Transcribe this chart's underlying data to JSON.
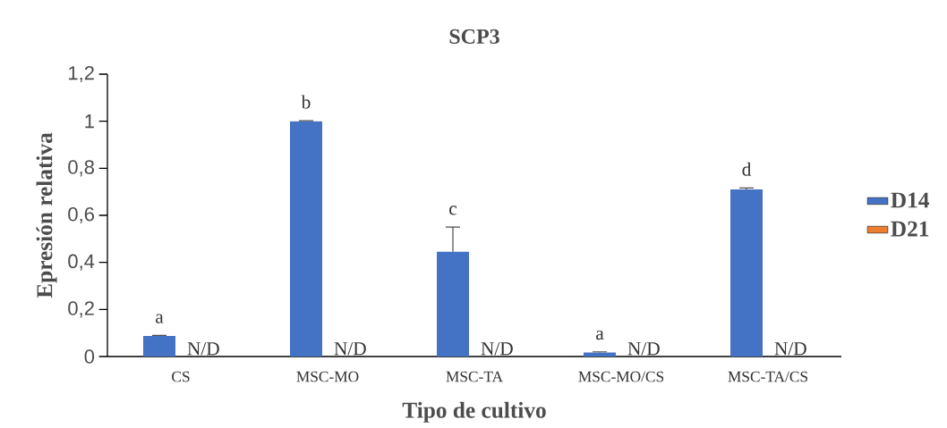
{
  "chart_data": {
    "type": "bar",
    "title": "SCP3",
    "xlabel": "Tipo de cultivo",
    "ylabel": "Epresión relativa",
    "categories": [
      "CS",
      "MSC-MO",
      "MSC-TA",
      "MSC-MO/CS",
      "MSC-TA/CS"
    ],
    "series": [
      {
        "name": "D14",
        "color": "#4472c4",
        "values": [
          0.087,
          1.0,
          0.445,
          0.017,
          0.71
        ],
        "errors": [
          0.003,
          0.002,
          0.105,
          0.003,
          0.006
        ],
        "value_labels": [
          "a",
          "b",
          "c",
          "a",
          "d"
        ]
      },
      {
        "name": "D21",
        "color": "#ed7d31",
        "values": [
          null,
          null,
          null,
          null,
          null
        ],
        "value_labels": [
          "N/D",
          "N/D",
          "N/D",
          "N/D",
          "N/D"
        ]
      }
    ],
    "ylim": [
      0,
      1.2
    ],
    "yticks": [
      0,
      {
        "value": 0.2,
        "label": "0,2"
      },
      {
        "value": 0.4,
        "label": "0,4"
      },
      {
        "value": 0.6,
        "label": "0,6"
      },
      {
        "value": 0.8,
        "label": "0,8"
      },
      1,
      {
        "value": 1.2,
        "label": "1,2"
      }
    ],
    "grid": false,
    "legend": "right"
  }
}
